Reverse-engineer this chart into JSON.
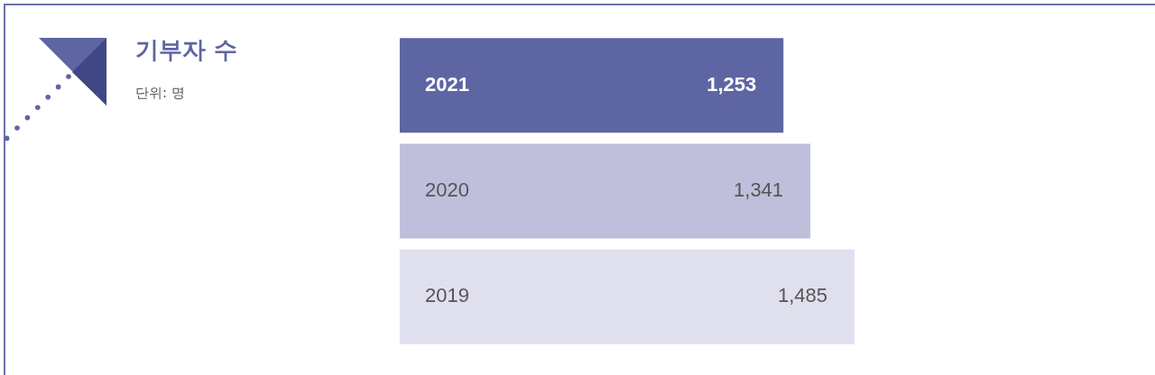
{
  "chart_data": {
    "type": "bar",
    "orientation": "horizontal",
    "title": "기부자 수",
    "subtitle": "단위: 명",
    "categories": [
      "2021",
      "2020",
      "2019"
    ],
    "values": [
      1253,
      1341,
      1485
    ],
    "colors": [
      "#5e65a3",
      "#bfbfdc",
      "#dfdfee"
    ],
    "value_labels": [
      "1,253",
      "1,341",
      "1,485"
    ],
    "legend": false,
    "tick_labels": false
  }
}
